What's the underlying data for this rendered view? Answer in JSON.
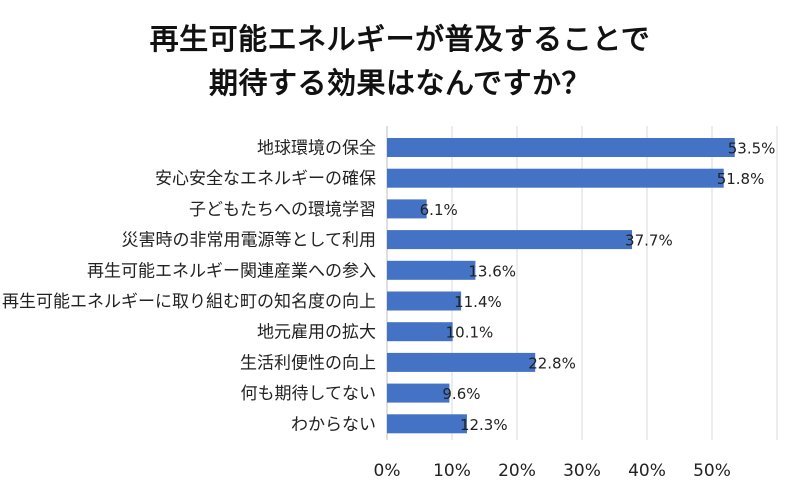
{
  "chart_data": {
    "type": "bar",
    "orientation": "horizontal",
    "title_lines": [
      "再生可能エネルギーが普及することで",
      "期待する効果はなんですか？"
    ],
    "categories": [
      "地球環境の保全",
      "安心安全なエネルギーの確保",
      "子どもたちへの環境学習",
      "災害時の非常用電源等として利用",
      "再生可能エネルギー関連産業への参入",
      "再生可能エネルギーに取り組む町の知名度の向上",
      "地元雇用の拡大",
      "生活利便性の向上",
      "何も期待してない",
      "わからない"
    ],
    "values": [
      53.5,
      51.8,
      6.1,
      37.7,
      13.6,
      11.4,
      10.1,
      22.8,
      9.6,
      12.3
    ],
    "value_labels": [
      "53.5%",
      "51.8%",
      "6.1%",
      "37.7%",
      "13.6%",
      "11.4%",
      "10.1%",
      "22.8%",
      "9.6%",
      "12.3%"
    ],
    "x_ticks": [
      "0%",
      "10%",
      "20%",
      "30%",
      "40%",
      "50%"
    ],
    "xlim": [
      0,
      60
    ],
    "grid": true,
    "bar_color": "#4472C4",
    "grid_color": "#d9d9d9"
  }
}
